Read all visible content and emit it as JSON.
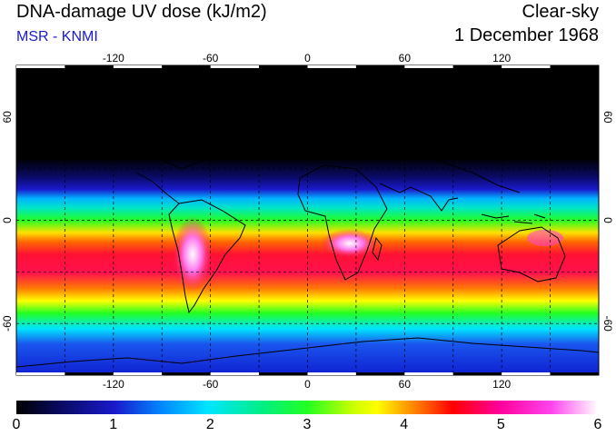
{
  "header": {
    "title": "DNA-damage UV dose (kJ/m2)",
    "subtitle": "MSR - KNMI",
    "condition": "Clear-sky",
    "date": "1 December 1968"
  },
  "map": {
    "lon_ticks": [
      "-120",
      "-60",
      "0",
      "60",
      "120"
    ],
    "lat_ticks": [
      "60",
      "0",
      "-60"
    ],
    "projection": "equirectangular",
    "grid": true
  },
  "colorbar": {
    "min": 0,
    "max": 6,
    "labels": [
      "0",
      "1",
      "2",
      "3",
      "4",
      "5",
      "6"
    ],
    "colors": [
      "#000000",
      "#1a1acc",
      "#00e5ff",
      "#22ff22",
      "#ffff00",
      "#ff3300",
      "#ff00cc",
      "#ffffff"
    ]
  }
}
